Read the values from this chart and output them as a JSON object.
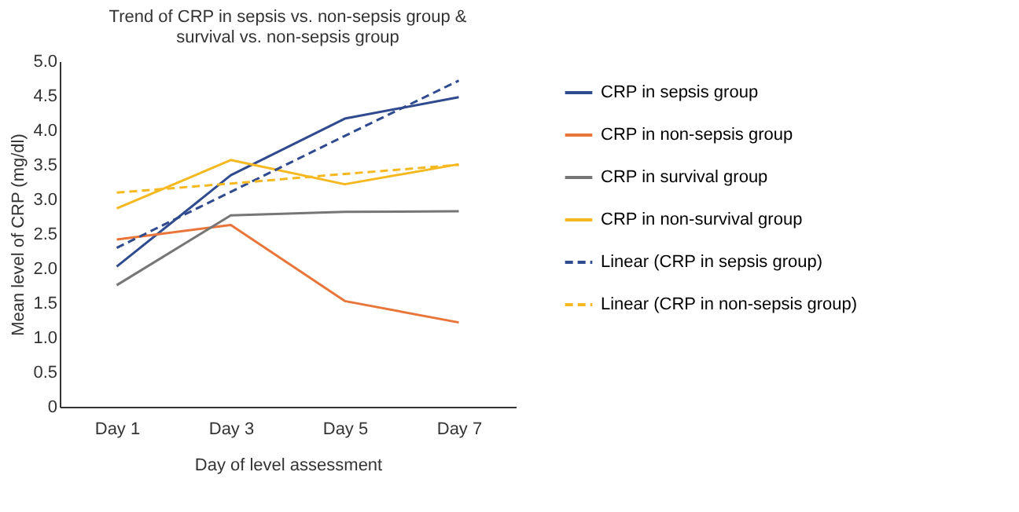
{
  "chart_data": {
    "type": "line",
    "title": "Trend of CRP in sepsis vs. non-sepsis group &\nsurvival vs. non-sepsis group",
    "xlabel": "Day of level assessment",
    "ylabel": "Mean level of CRP (mg/dl)",
    "categories": [
      "Day 1",
      "Day 3",
      "Day 5",
      "Day 7"
    ],
    "ylim": [
      0,
      5
    ],
    "yticks": [
      {
        "value": 0,
        "label": "0"
      },
      {
        "value": 0.5,
        "label": "0.5"
      },
      {
        "value": 1,
        "label": "1.0"
      },
      {
        "value": 1.5,
        "label": "1.5"
      },
      {
        "value": 2,
        "label": "2.0"
      },
      {
        "value": 2.5,
        "label": "2.5"
      },
      {
        "value": 3,
        "label": "3.0"
      },
      {
        "value": 3.5,
        "label": "3.5"
      },
      {
        "value": 4,
        "label": "4.0"
      },
      {
        "value": 4.5,
        "label": "4.5"
      },
      {
        "value": 5,
        "label": "5.0"
      }
    ],
    "grid": false,
    "legend": "right",
    "marker": "none",
    "series": [
      {
        "name": "CRP in sepsis group",
        "color": "#2f4a8f",
        "values": [
          2.03,
          3.35,
          4.17,
          4.48
        ],
        "line_style": "solid"
      },
      {
        "name": "CRP in non-sepsis group",
        "color": "#e8763a",
        "values": [
          2.42,
          2.63,
          1.53,
          1.22
        ],
        "line_style": "solid"
      },
      {
        "name": "CRP in survival group",
        "color": "#767676",
        "values": [
          1.76,
          2.77,
          2.82,
          2.83
        ],
        "line_style": "solid"
      },
      {
        "name": "CRP in non-survival group",
        "color": "#f5b820",
        "values": [
          2.87,
          3.57,
          3.22,
          3.51
        ],
        "line_style": "solid"
      },
      {
        "name": "Linear (CRP in sepsis group)",
        "color": "#2f4a8f",
        "values": [
          2.3,
          3.11,
          3.92,
          4.72
        ],
        "line_style": "dashed"
      },
      {
        "name": "Linear (CRP in non-sepsis group)",
        "color": "#f5b820",
        "values": [
          3.1,
          3.23,
          3.37,
          3.5
        ],
        "line_style": "dashed"
      }
    ]
  }
}
